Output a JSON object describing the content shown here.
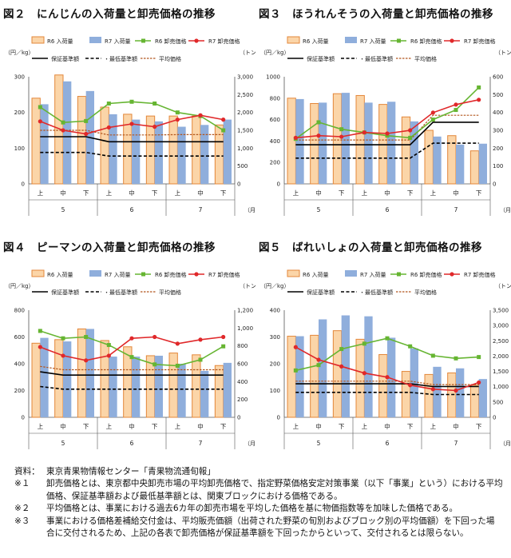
{
  "chart_data": [
    {
      "type": "bar",
      "figure_label": "図２",
      "title": "にんじんの入荷量と卸売価格の推移",
      "ylabel_left": "（円／kg）",
      "ylabel_right": "（トン）",
      "xlabel_unit": "（月）",
      "ylim_left": [
        0,
        300
      ],
      "ylim_right": [
        0,
        3000
      ],
      "ticks_left": [
        0,
        100,
        200,
        300
      ],
      "ticks_right": [
        "0",
        "500",
        "1,000",
        "1,500",
        "2,000",
        "2,500",
        "3,000"
      ],
      "categories": [
        "上",
        "中",
        "下",
        "上",
        "中",
        "下",
        "上",
        "中",
        "下"
      ],
      "months": [
        "5",
        "6",
        "7"
      ],
      "legend": [
        "R6 入荷量",
        "R7 入荷量",
        "R6 卸売価格",
        "R7 卸売価格",
        "保証基準額",
        "最低基準額",
        "平均価格"
      ],
      "series": [
        {
          "name": "R6 入荷量",
          "values": [
            2400,
            3050,
            2450,
            2150,
            1950,
            1900,
            1900,
            1900,
            1650
          ]
        },
        {
          "name": "R7 入荷量",
          "values": [
            2230,
            2870,
            2600,
            1950,
            1800,
            1750,
            1600,
            1650,
            1800
          ]
        },
        {
          "name": "R6 卸売価格",
          "values": [
            215,
            172,
            176,
            225,
            230,
            225,
            200,
            190,
            150
          ]
        },
        {
          "name": "R7 卸売価格",
          "values": [
            175,
            150,
            140,
            158,
            168,
            160,
            180,
            192,
            180
          ]
        },
        {
          "name": "保証基準額",
          "values": [
            132,
            132,
            132,
            118,
            118,
            118,
            118,
            118,
            118
          ]
        },
        {
          "name": "最低基準額",
          "values": [
            88,
            88,
            88,
            78,
            78,
            78,
            78,
            78,
            78
          ]
        },
        {
          "name": "平均価格",
          "values": [
            150,
            150,
            150,
            137,
            137,
            137,
            138,
            138,
            138
          ]
        }
      ]
    },
    {
      "type": "bar",
      "figure_label": "図３",
      "title": "ほうれんそうの入荷量と卸売価格の推移",
      "ylabel_left": "（円／kg）",
      "ylabel_right": "（トン）",
      "xlabel_unit": "（月）",
      "ylim_left": [
        0,
        1000
      ],
      "ylim_right": [
        0,
        600
      ],
      "ticks_left": [
        0,
        200,
        400,
        600,
        800,
        1000
      ],
      "ticks_right": [
        "0",
        "100",
        "200",
        "300",
        "400",
        "500",
        "600"
      ],
      "categories": [
        "上",
        "中",
        "下",
        "上",
        "中",
        "下",
        "上",
        "中",
        "下"
      ],
      "months": [
        "5",
        "6",
        "7"
      ],
      "legend": [
        "R6 入荷量",
        "R7 入荷量",
        "R6 卸売価格",
        "R7 卸売価格",
        "保証基準額",
        "最低基準額",
        "平均価格"
      ],
      "series": [
        {
          "name": "R6 入荷量",
          "values": [
            480,
            450,
            505,
            495,
            445,
            375,
            300,
            270,
            185
          ]
        },
        {
          "name": "R7 入荷量",
          "values": [
            475,
            455,
            510,
            455,
            460,
            350,
            265,
            220,
            225
          ]
        },
        {
          "name": "R6 卸売価格",
          "values": [
            420,
            575,
            510,
            480,
            450,
            430,
            600,
            690,
            900
          ]
        },
        {
          "name": "R7 卸売価格",
          "values": [
            430,
            450,
            440,
            480,
            470,
            500,
            665,
            740,
            785
          ]
        },
        {
          "name": "保証基準額",
          "values": [
            365,
            365,
            365,
            365,
            365,
            365,
            575,
            575,
            575
          ]
        },
        {
          "name": "最低基準額",
          "values": [
            240,
            240,
            240,
            240,
            240,
            240,
            380,
            380,
            380
          ]
        },
        {
          "name": "平均価格",
          "values": [
            410,
            410,
            410,
            410,
            410,
            410,
            640,
            640,
            640
          ]
        }
      ]
    },
    {
      "type": "bar",
      "figure_label": "図４",
      "title": "ピーマンの入荷量と卸売価格の推移",
      "ylabel_left": "（円／kg）",
      "ylabel_right": "（トン）",
      "xlabel_unit": "（月）",
      "ylim_left": [
        0,
        800
      ],
      "ylim_right": [
        0,
        1200
      ],
      "ticks_left": [
        0,
        200,
        400,
        600,
        800
      ],
      "ticks_right": [
        "0",
        "200",
        "400",
        "600",
        "800",
        "1,000",
        "1,200"
      ],
      "categories": [
        "上",
        "中",
        "下",
        "上",
        "中",
        "下",
        "上",
        "中",
        "下"
      ],
      "months": [
        "5",
        "6",
        "7"
      ],
      "legend": [
        "R6 入荷量",
        "R7 入荷量",
        "R6 卸売価格",
        "R7 卸売価格",
        "保証基準額",
        "最低基準額",
        "平均価格"
      ],
      "series": [
        {
          "name": "R6 入荷量",
          "values": [
            830,
            870,
            990,
            860,
            790,
            690,
            720,
            700,
            580
          ]
        },
        {
          "name": "R7 入荷量",
          "values": [
            890,
            850,
            990,
            680,
            680,
            690,
            600,
            520,
            610
          ]
        },
        {
          "name": "R6 卸売価格",
          "values": [
            645,
            590,
            600,
            540,
            450,
            395,
            385,
            430,
            530
          ]
        },
        {
          "name": "R7 卸売価格",
          "values": [
            525,
            460,
            425,
            460,
            590,
            600,
            550,
            580,
            600
          ]
        },
        {
          "name": "保証基準額",
          "values": [
            340,
            315,
            315,
            315,
            315,
            315,
            315,
            315,
            315
          ]
        },
        {
          "name": "最低基準額",
          "values": [
            230,
            210,
            210,
            210,
            210,
            210,
            210,
            210,
            210
          ]
        },
        {
          "name": "平均価格",
          "values": [
            380,
            355,
            355,
            355,
            355,
            355,
            355,
            355,
            355
          ]
        }
      ]
    },
    {
      "type": "bar",
      "figure_label": "図５",
      "title": "ばれいしょの入荷量と卸売価格の推移",
      "ylabel_left": "（円／kg）",
      "ylabel_right": "（トン）",
      "xlabel_unit": "（月）",
      "ylim_left": [
        0,
        400
      ],
      "ylim_right": [
        0,
        3500
      ],
      "ticks_left": [
        0,
        100,
        200,
        300,
        400
      ],
      "ticks_right": [
        "0",
        "500",
        "1,000",
        "1,500",
        "2,000",
        "2,500",
        "3,000",
        "3,500"
      ],
      "categories": [
        "上",
        "中",
        "下",
        "上",
        "中",
        "下",
        "上",
        "中",
        "下"
      ],
      "months": [
        "5",
        "6",
        "7"
      ],
      "legend": [
        "R6 入荷量",
        "R7 入荷量",
        "R6 卸売価格",
        "R7 卸売価格",
        "保証基準額",
        "最低基準額",
        "平均価格"
      ],
      "series": [
        {
          "name": "R6 入荷量",
          "values": [
            2650,
            2680,
            2830,
            2550,
            2050,
            1500,
            1400,
            1450,
            1050
          ]
        },
        {
          "name": "R7 入荷量",
          "values": [
            2650,
            3200,
            3330,
            3300,
            2600,
            2250,
            1650,
            1600,
            1250
          ]
        },
        {
          "name": "R6 卸売価格",
          "values": [
            175,
            195,
            255,
            275,
            295,
            265,
            230,
            220,
            225
          ]
        },
        {
          "name": "R7 卸売価格",
          "values": [
            262,
            215,
            190,
            165,
            150,
            120,
            105,
            100,
            130
          ]
        },
        {
          "name": "保証基準額",
          "values": [
            125,
            125,
            125,
            125,
            125,
            125,
            115,
            115,
            115
          ]
        },
        {
          "name": "最低基準額",
          "values": [
            93,
            93,
            93,
            93,
            93,
            93,
            85,
            85,
            85
          ]
        },
        {
          "name": "平均価格",
          "values": [
            135,
            135,
            135,
            135,
            135,
            135,
            122,
            122,
            122
          ]
        }
      ]
    }
  ],
  "notes": [
    {
      "mark": "資料：",
      "text": "東京青果物情報センター「青果物流通旬報」"
    },
    {
      "mark": "※１",
      "text": "卸売価格とは、東京都中央卸売市場の平均卸売価格で、指定野菜価格安定対策事業（以下「事業」という）における平均価格、保証基準額および最低基準額とは、関東ブロックにおける価格である。"
    },
    {
      "mark": "※２",
      "text": "平均価格とは、事業における過去6カ年の卸売市場を平均した価格を基に物価指数等を加味した価格である。"
    },
    {
      "mark": "※３",
      "text": "事業における価格差補給交付金は、平均販売価額（出荷された野菜の旬別およびブロック別の平均価額）を下回った場合に交付されるため、上記の各表で卸売価格が保証基準額を下回ったからといって、交付されるとは限らない。"
    }
  ],
  "colors": {
    "r6_bar_fill": "#fbd5a8",
    "r6_bar_stroke": "#e3873a",
    "r7_bar_fill": "#8faedc",
    "r6_price": "#66b532",
    "r7_price": "#e0282a",
    "guarantee": "#000000",
    "minimum": "#000000",
    "average": "#b2561e"
  }
}
